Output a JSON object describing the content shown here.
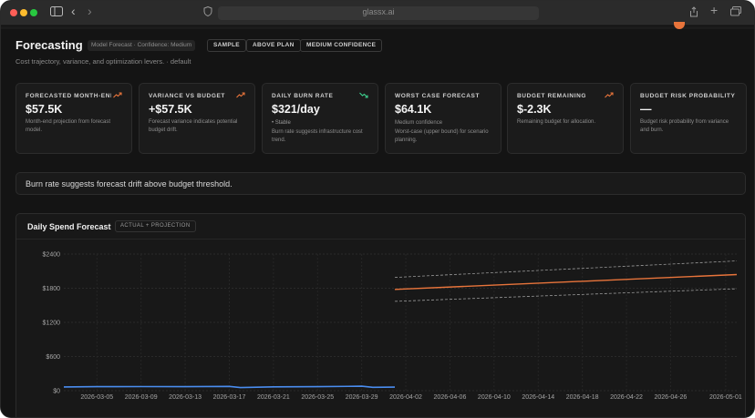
{
  "browser": {
    "url": "glassx.ai",
    "colors": {
      "close": "#ff5f57",
      "minimize": "#febc2e",
      "maximize": "#28c840"
    }
  },
  "header": {
    "title": "Forecasting",
    "model_tag": "Model Forecast · Confidence: Medium",
    "tags": [
      "SAMPLE",
      "ABOVE PLAN",
      "MEDIUM CONFIDENCE"
    ],
    "subtitle": "Cost trajectory, variance, and optimization levers. · default"
  },
  "cards": [
    {
      "label": "FORECASTED MONTH-END SPEND",
      "value": "$57.5K",
      "description": "Month-end projection from forecast model.",
      "icon": "trend-up-icon",
      "icon_color": "#e8743b"
    },
    {
      "label": "VARIANCE VS BUDGET",
      "value": "+$57.5K",
      "description": "Forecast variance indicates potential budget drift.",
      "icon": "trend-up-icon",
      "icon_color": "#e8743b"
    },
    {
      "label": "DAILY BURN RATE",
      "value": "$321/day",
      "stable": "• Stable",
      "description": "Burn rate suggests infrastructure cost trend.",
      "icon": "trend-down-icon",
      "icon_color": "#3ecf8e"
    },
    {
      "label": "WORST CASE FORECAST",
      "value": "$64.1K",
      "stable": "Medium confidence",
      "description": "Worst-case (upper bound) for scenario planning.",
      "icon": "",
      "icon_color": ""
    },
    {
      "label": "BUDGET REMAINING",
      "value": "$-2.3K",
      "description": "Remaining budget for allocation.",
      "icon": "trend-up-icon",
      "icon_color": "#e8743b"
    },
    {
      "label": "BUDGET RISK PROBABILITY",
      "value": "—",
      "description": "Budget risk probability from variance and burn.",
      "icon": "",
      "icon_color": ""
    }
  ],
  "alert": {
    "text": "Burn rate suggests forecast drift above budget threshold."
  },
  "chart_panel": {
    "title": "Daily Spend Forecast",
    "tag": "ACTUAL + PROJECTION"
  },
  "chart_data": {
    "type": "line",
    "title": "Daily Spend Forecast",
    "ylim": [
      0,
      2400
    ],
    "y_ticks": [
      "$2400",
      "$1800",
      "$1200",
      "$600",
      "$0"
    ],
    "y_tick_values": [
      2400,
      1800,
      1200,
      600,
      0
    ],
    "x_start": "2026-03-02",
    "x_end": "2026-05-02",
    "x_ticks": [
      "2026-03-05",
      "2026-03-09",
      "2026-03-13",
      "2026-03-17",
      "2026-03-21",
      "2026-03-25",
      "2026-03-29",
      "2026-04-02",
      "2026-04-06",
      "2026-04-10",
      "2026-04-14",
      "2026-04-18",
      "2026-04-22",
      "2026-04-26",
      "2026-05-01"
    ],
    "grid": true,
    "colors": {
      "actual": "#4a8df0",
      "projection": "#e8743b",
      "bounds": "#9a9a9a"
    },
    "series": [
      {
        "x": [
          "2026-03-02",
          "2026-03-05",
          "2026-03-09",
          "2026-03-13",
          "2026-03-17",
          "2026-03-18",
          "2026-03-21",
          "2026-03-25",
          "2026-03-29",
          "2026-03-30",
          "2026-04-01"
        ],
        "values": [
          65,
          70,
          72,
          70,
          75,
          55,
          68,
          70,
          78,
          60,
          62
        ]
      },
      {
        "x": [
          "2026-04-01",
          "2026-05-02"
        ],
        "values": [
          1780,
          2040
        ]
      },
      {
        "x": [
          "2026-04-01",
          "2026-05-02"
        ],
        "values": [
          1990,
          2280
        ]
      },
      {
        "x": [
          "2026-04-01",
          "2026-05-02"
        ],
        "values": [
          1570,
          1790
        ]
      }
    ]
  }
}
